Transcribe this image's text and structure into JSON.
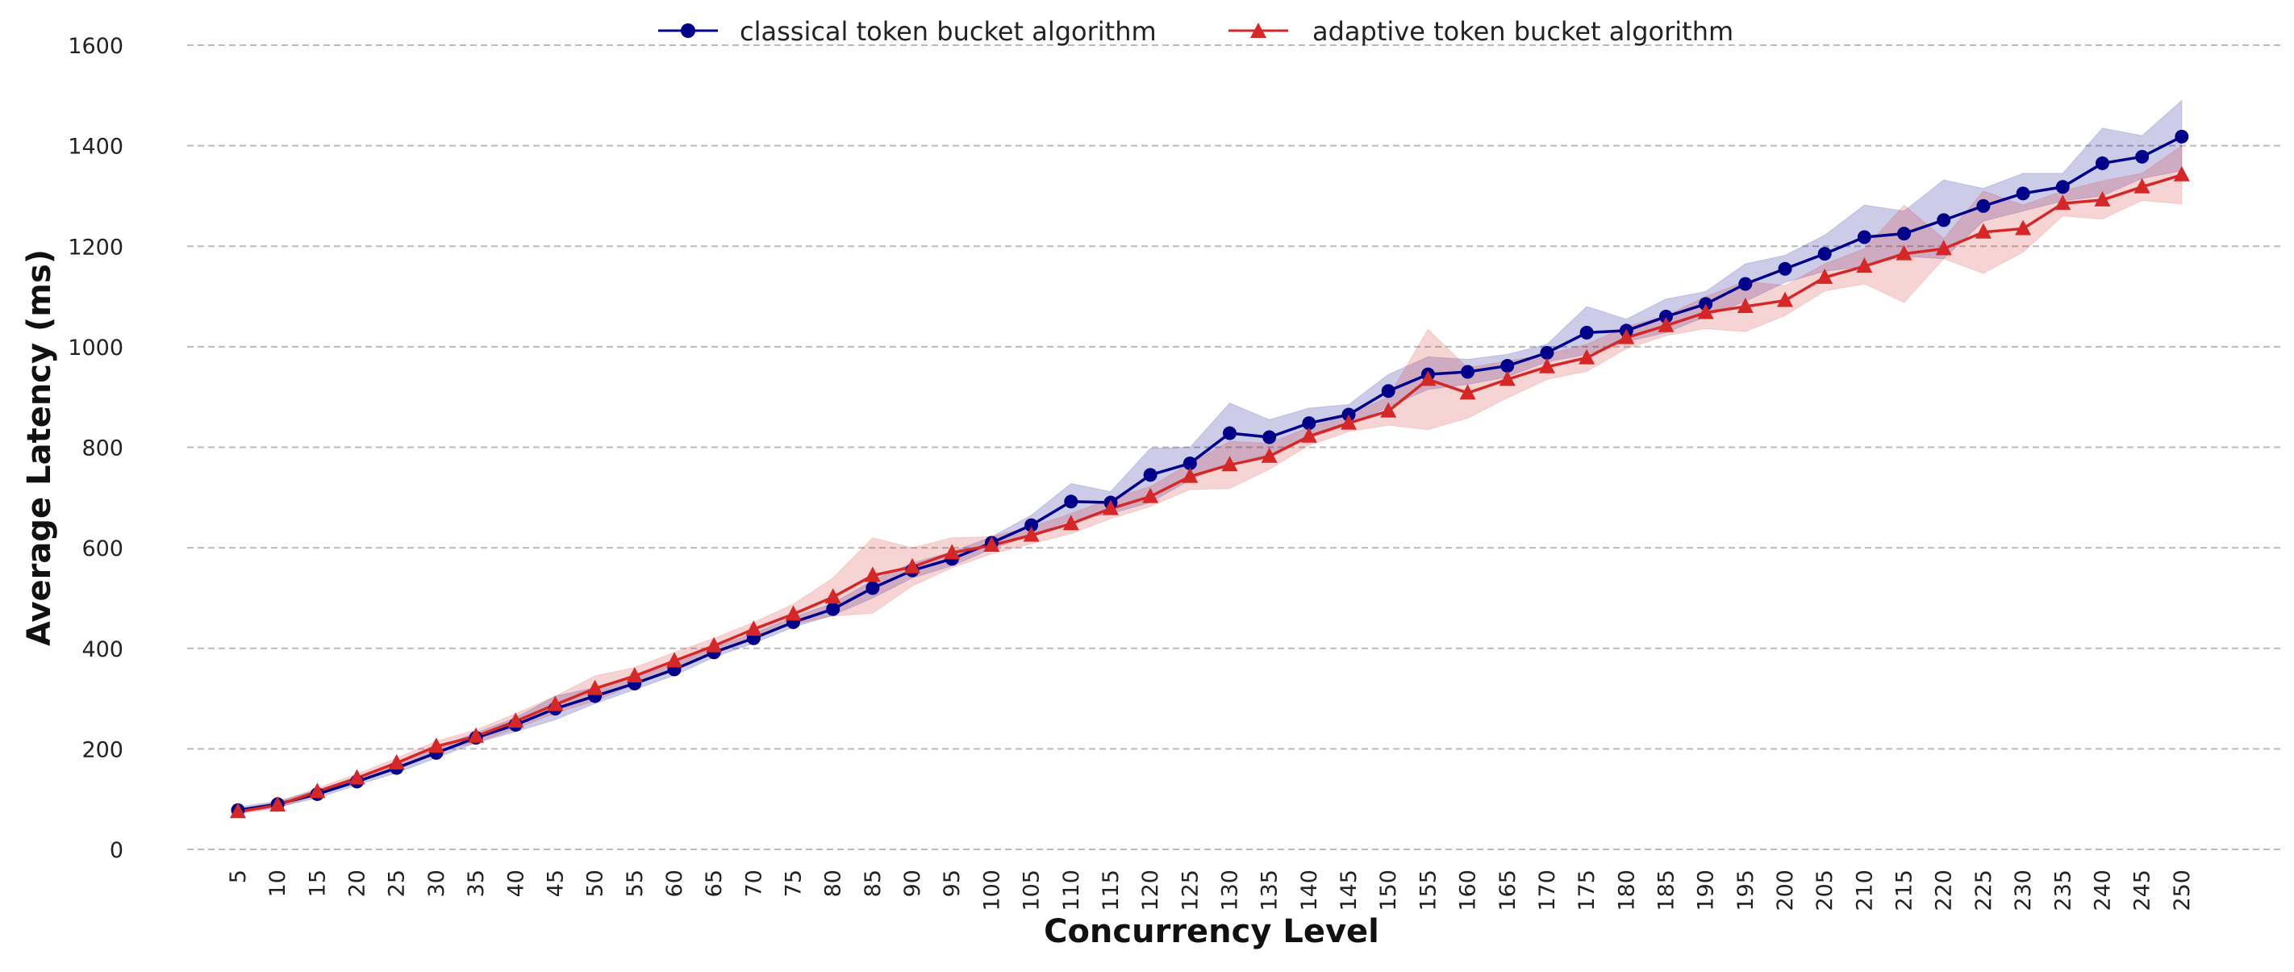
{
  "chart_data": {
    "type": "line",
    "title": "",
    "xlabel": "Concurrency Level",
    "ylabel": "Average Latency (ms)",
    "ylim": [
      0,
      1600
    ],
    "yticks": [
      0,
      200,
      400,
      600,
      800,
      1000,
      1200,
      1400,
      1600
    ],
    "grid": "horizontal dashed",
    "legend_position": "top-center",
    "x": [
      5,
      10,
      15,
      20,
      25,
      30,
      35,
      40,
      45,
      50,
      55,
      60,
      65,
      70,
      75,
      80,
      85,
      90,
      95,
      100,
      105,
      110,
      115,
      120,
      125,
      130,
      135,
      140,
      145,
      150,
      155,
      160,
      165,
      170,
      175,
      180,
      185,
      190,
      195,
      200,
      205,
      210,
      215,
      220,
      225,
      230,
      235,
      240,
      245,
      250
    ],
    "series": [
      {
        "name": "classical token bucket algorithm",
        "color": "#00008b",
        "marker": "circle",
        "values": [
          78,
          90,
          110,
          135,
          162,
          192,
          222,
          248,
          280,
          305,
          330,
          358,
          392,
          420,
          452,
          478,
          520,
          555,
          578,
          610,
          645,
          692,
          690,
          745,
          768,
          828,
          820,
          848,
          865,
          912,
          945,
          950,
          962,
          988,
          1028,
          1032,
          1060,
          1085,
          1125,
          1155,
          1185,
          1218,
          1225,
          1252,
          1280,
          1305,
          1318,
          1365,
          1378,
          1418
        ],
        "band_upper": [
          84,
          96,
          118,
          142,
          172,
          202,
          232,
          262,
          305,
          322,
          342,
          370,
          402,
          430,
          462,
          490,
          535,
          570,
          592,
          622,
          665,
          728,
          712,
          798,
          800,
          888,
          855,
          878,
          885,
          945,
          980,
          975,
          985,
          1005,
          1080,
          1055,
          1095,
          1110,
          1165,
          1182,
          1222,
          1282,
          1270,
          1332,
          1315,
          1345,
          1345,
          1435,
          1420,
          1490
        ],
        "band_lower": [
          72,
          84,
          102,
          128,
          152,
          182,
          212,
          234,
          258,
          290,
          318,
          346,
          382,
          410,
          442,
          466,
          500,
          540,
          564,
          598,
          625,
          655,
          668,
          690,
          735,
          770,
          785,
          818,
          845,
          880,
          915,
          925,
          940,
          970,
          985,
          1010,
          1028,
          1060,
          1090,
          1128,
          1150,
          1160,
          1180,
          1175,
          1250,
          1270,
          1290,
          1300,
          1335,
          1350
        ]
      },
      {
        "name": "adaptive token bucket algorithm",
        "color": "#d62728",
        "marker": "triangle",
        "values": [
          75,
          88,
          115,
          142,
          172,
          205,
          225,
          255,
          288,
          320,
          345,
          375,
          405,
          438,
          468,
          502,
          545,
          562,
          590,
          605,
          625,
          648,
          678,
          702,
          742,
          765,
          782,
          822,
          848,
          872,
          935,
          908,
          935,
          960,
          978,
          1018,
          1042,
          1068,
          1080,
          1092,
          1138,
          1160,
          1185,
          1195,
          1228,
          1235,
          1285,
          1292,
          1318,
          1342
        ],
        "band_upper": [
          80,
          94,
          122,
          150,
          182,
          215,
          238,
          270,
          305,
          345,
          362,
          392,
          420,
          452,
          488,
          540,
          620,
          600,
          620,
          622,
          642,
          668,
          698,
          722,
          768,
          812,
          808,
          840,
          865,
          900,
          1035,
          958,
          972,
          985,
          1005,
          1040,
          1062,
          1100,
          1130,
          1122,
          1165,
          1195,
          1282,
          1215,
          1310,
          1282,
          1310,
          1330,
          1345,
          1400
        ]
      }
    ]
  }
}
